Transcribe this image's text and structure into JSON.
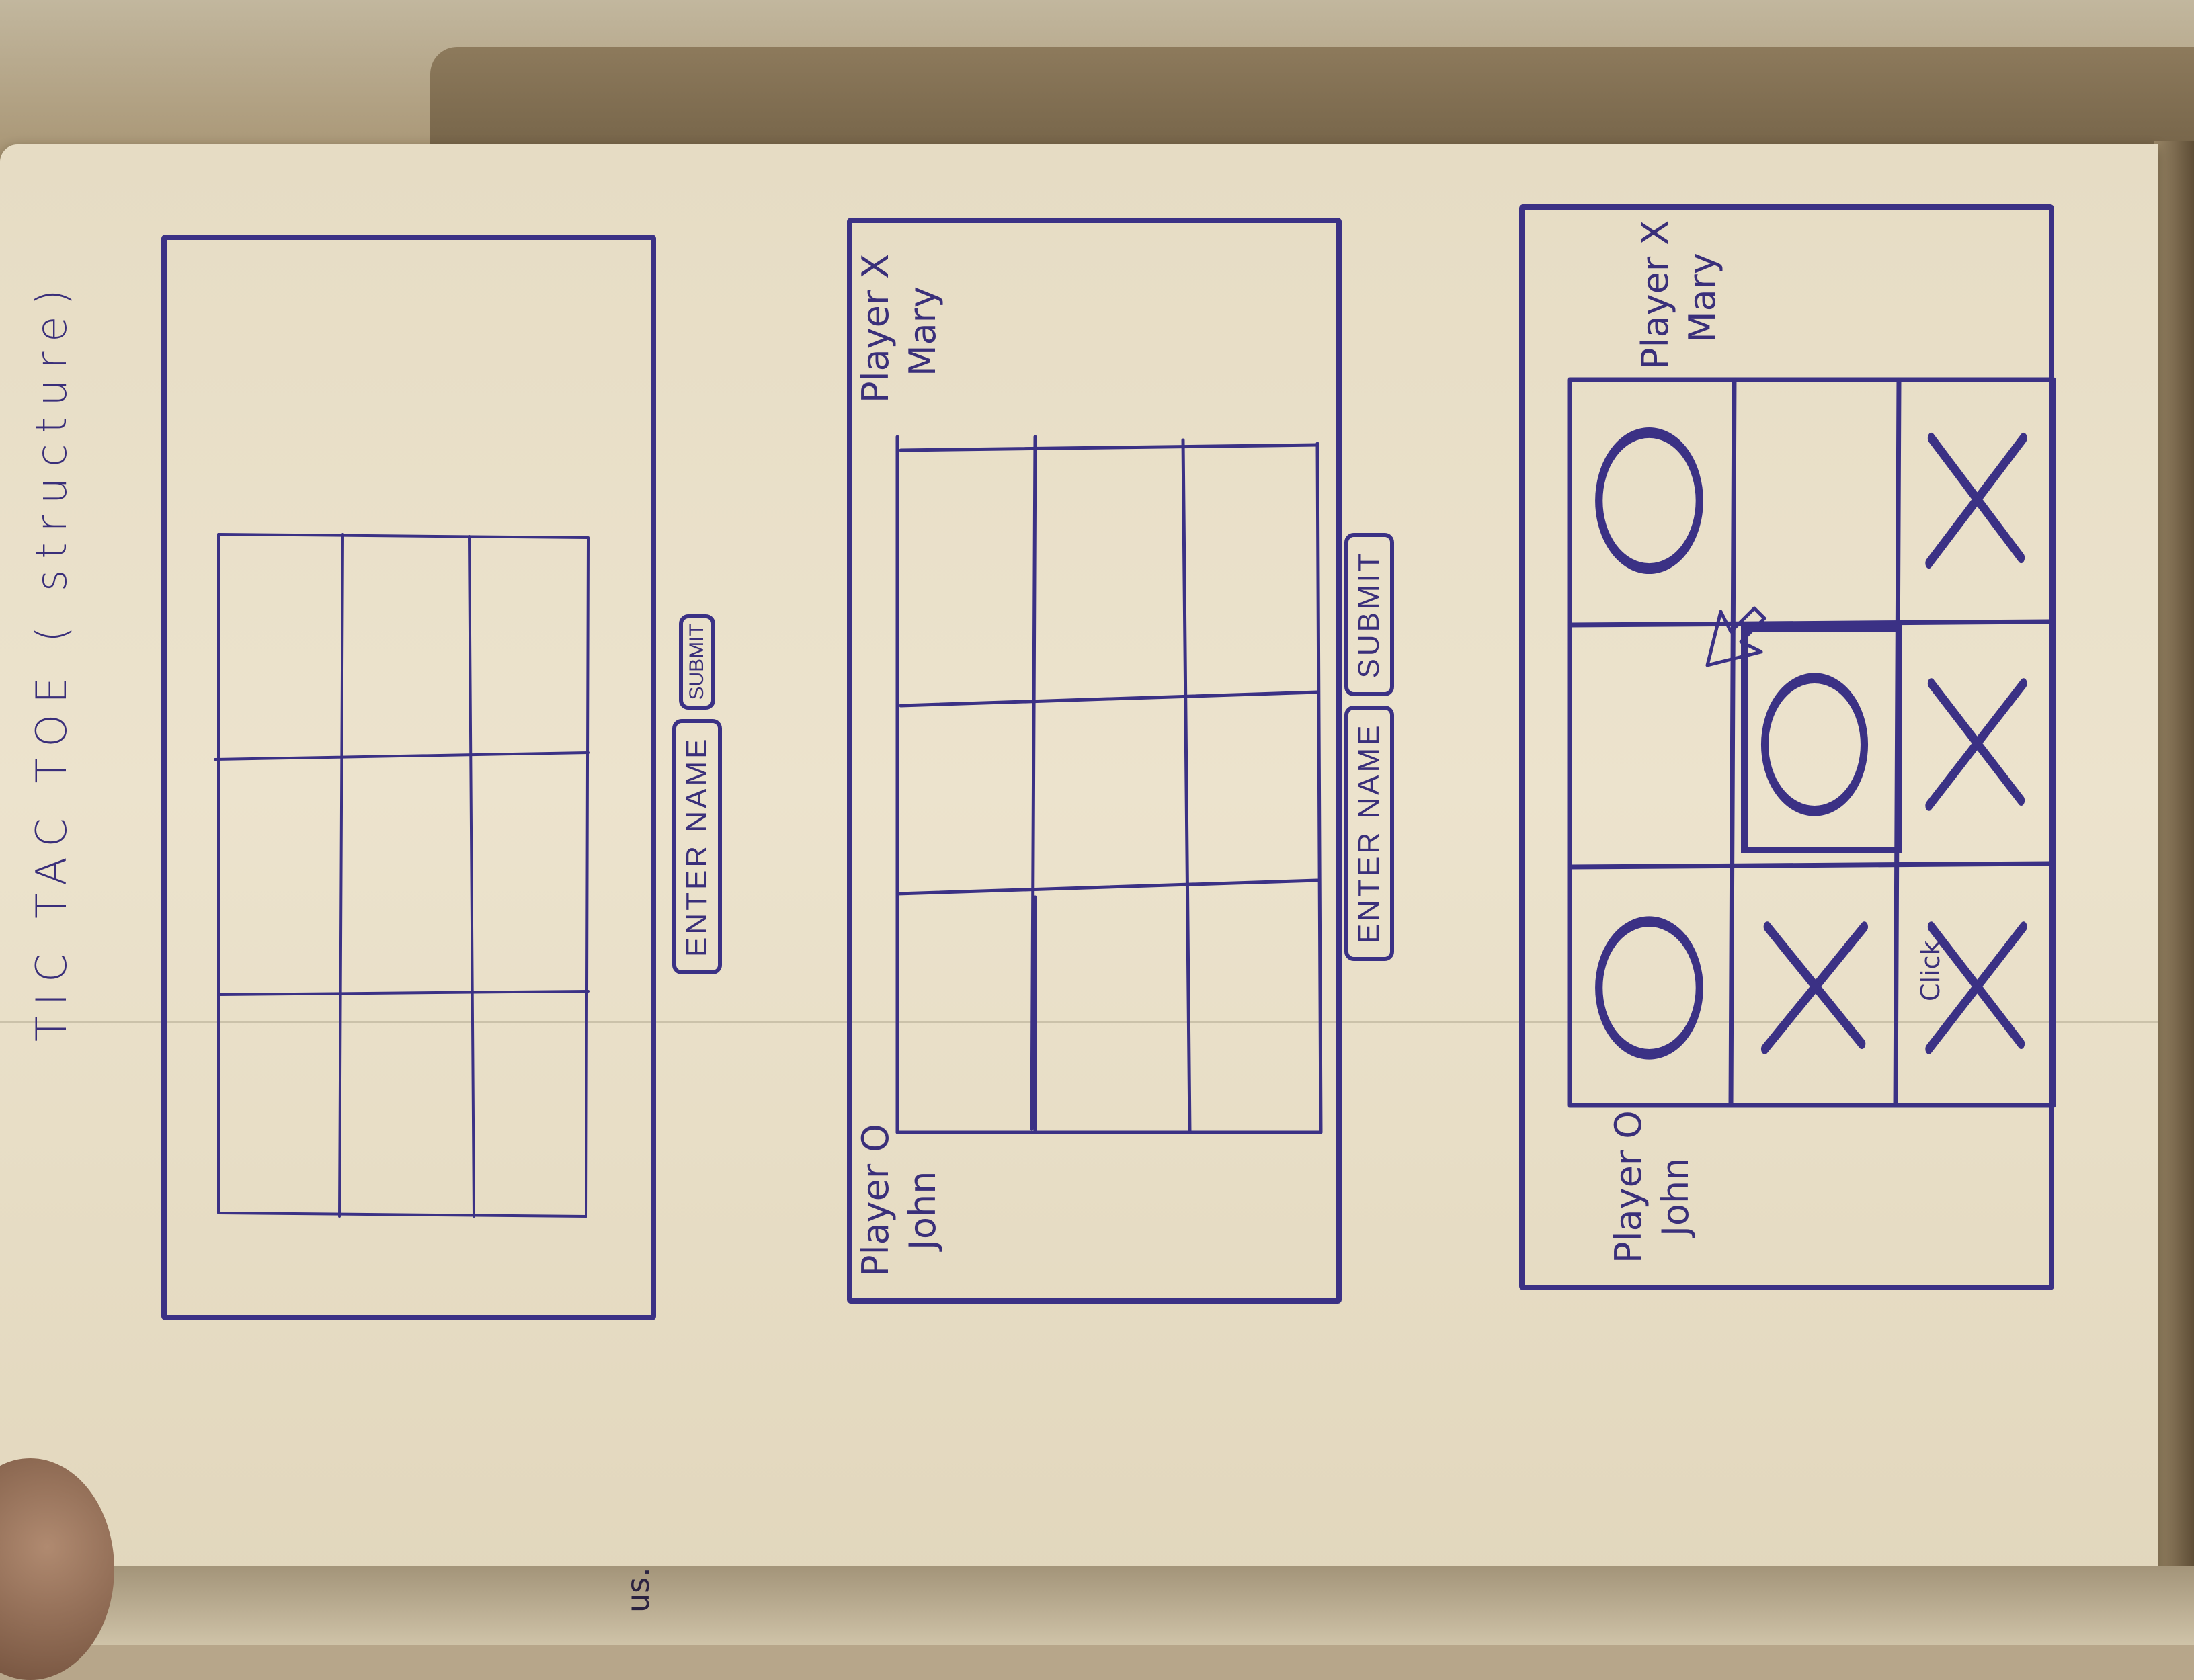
{
  "title": "TIC TAC TOE ( structure)",
  "screens": [
    {
      "id": "empty-board",
      "enter_label": "ENTER NAME",
      "submit_label": "SUBMIT"
    },
    {
      "id": "players-named",
      "player_x_label": "Player X",
      "player_x_name": "Mary",
      "player_o_label": "Player O",
      "player_o_name": "John",
      "enter_label": "ENTER NAME",
      "submit_label": "SUBMIT"
    },
    {
      "id": "game-in-progress",
      "player_x_label": "Player X",
      "player_x_name": "Mary",
      "player_o_label": "Player O",
      "player_o_name": "John",
      "board": [
        [
          "O",
          "",
          "O"
        ],
        [
          "X",
          "O",
          ""
        ],
        [
          "X",
          "X",
          "X"
        ]
      ],
      "click_label": "Click"
    }
  ],
  "corner_text": "us.",
  "colors": {
    "ink": "#3b3185",
    "paper": "#ece3cd"
  }
}
